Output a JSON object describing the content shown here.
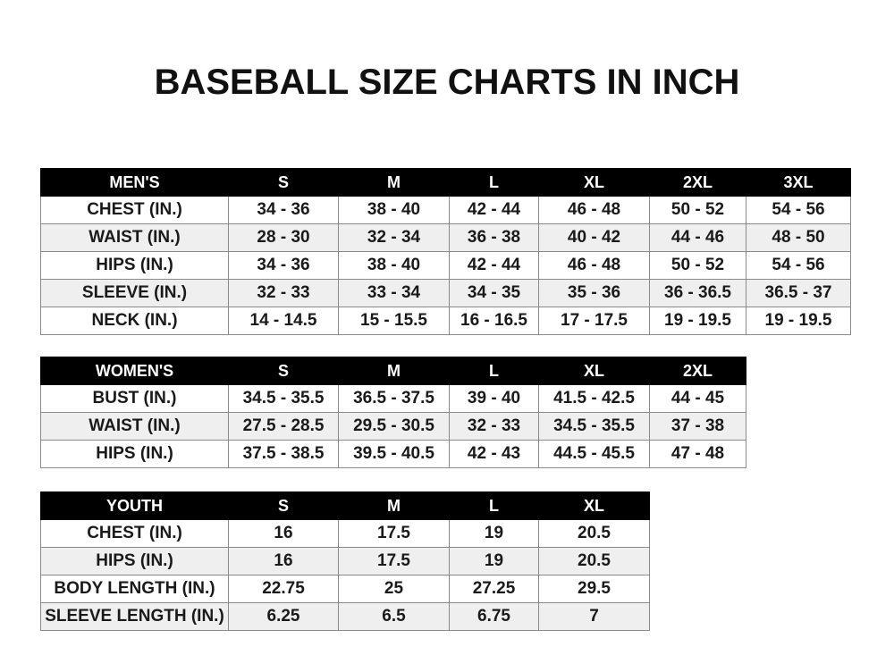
{
  "title": "BASEBALL SIZE CHARTS IN INCH",
  "mens": {
    "header": [
      "MEN'S",
      "S",
      "M",
      "L",
      "XL",
      "2XL",
      "3XL"
    ],
    "rows": [
      [
        "CHEST (IN.)",
        "34 - 36",
        "38 - 40",
        "42 - 44",
        "46 - 48",
        "50 - 52",
        "54 - 56"
      ],
      [
        "WAIST (IN.)",
        "28 - 30",
        "32 - 34",
        "36 - 38",
        "40 - 42",
        "44 - 46",
        "48 - 50"
      ],
      [
        "HIPS (IN.)",
        "34 - 36",
        "38 - 40",
        "42 - 44",
        "46 - 48",
        "50 - 52",
        "54 - 56"
      ],
      [
        "SLEEVE (IN.)",
        "32 - 33",
        "33 - 34",
        "34 - 35",
        "35 - 36",
        "36 - 36.5",
        "36.5 - 37"
      ],
      [
        "NECK (IN.)",
        "14 - 14.5",
        "15 - 15.5",
        "16 - 16.5",
        "17 - 17.5",
        "19 - 19.5",
        "19 - 19.5"
      ]
    ]
  },
  "womens": {
    "header": [
      "WOMEN'S",
      "S",
      "M",
      "L",
      "XL",
      "2XL"
    ],
    "rows": [
      [
        "BUST (IN.)",
        "34.5 - 35.5",
        "36.5 - 37.5",
        "39 - 40",
        "41.5 - 42.5",
        "44 - 45"
      ],
      [
        "WAIST (IN.)",
        "27.5 - 28.5",
        "29.5 - 30.5",
        "32 - 33",
        "34.5 - 35.5",
        "37 - 38"
      ],
      [
        "HIPS (IN.)",
        "37.5 - 38.5",
        "39.5 - 40.5",
        "42 - 43",
        "44.5 - 45.5",
        "47 - 48"
      ]
    ]
  },
  "youth": {
    "header": [
      "YOUTH",
      "S",
      "M",
      "L",
      "XL"
    ],
    "rows": [
      [
        "CHEST (IN.)",
        "16",
        "17.5",
        "19",
        "20.5"
      ],
      [
        "HIPS (IN.)",
        "16",
        "17.5",
        "19",
        "20.5"
      ],
      [
        "BODY LENGTH (IN.)",
        "22.75",
        "25",
        "27.25",
        "29.5"
      ],
      [
        "SLEEVE LENGTH (IN.)",
        "6.25",
        "6.5",
        "6.75",
        "7"
      ]
    ]
  }
}
